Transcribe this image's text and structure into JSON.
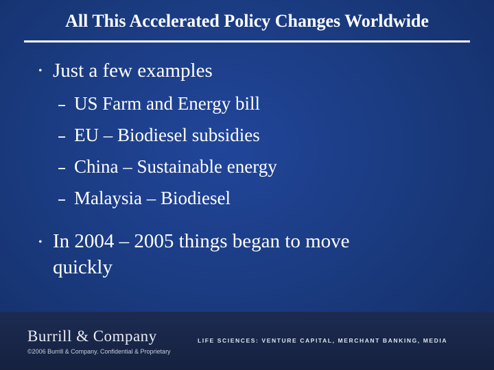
{
  "slide": {
    "title": "All This Accelerated Policy Changes Worldwide",
    "bullets": [
      {
        "text": "Just a few examples",
        "sub": [
          "US Farm and Energy bill",
          "EU – Biodiesel subsidies",
          "China – Sustainable energy",
          "Malaysia – Biodiesel"
        ]
      },
      {
        "text_line1": "In 2004 – 2005 things began to move",
        "text_line2": "quickly"
      }
    ]
  },
  "footer": {
    "company": "Burrill & Company",
    "copyright": "©2006 Burrill & Company. Confidential & Proprietary",
    "tagline": "LIFE SCIENCES: VENTURE CAPITAL, MERCHANT BANKING, MEDIA"
  },
  "colors": {
    "background": "#1b3c82",
    "footer": "#1c2b52",
    "text": "#ffffff"
  }
}
